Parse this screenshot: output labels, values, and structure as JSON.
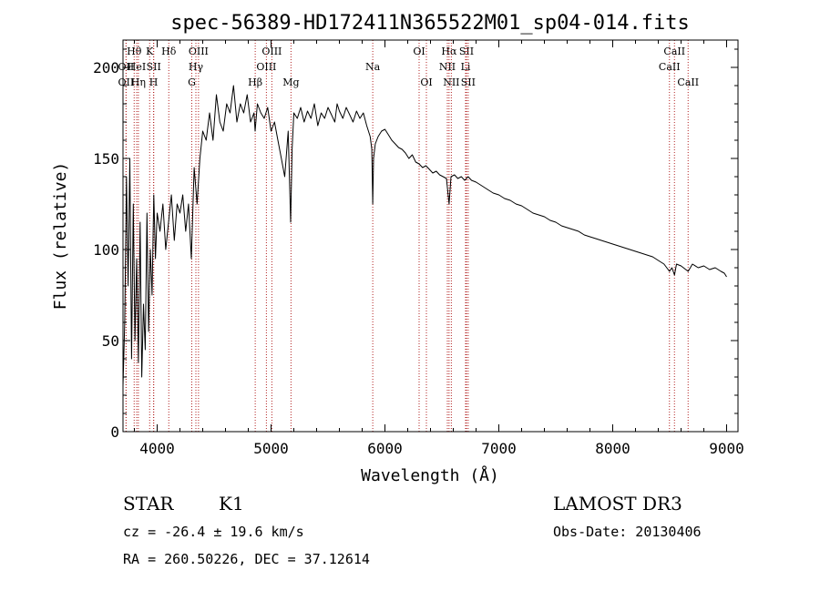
{
  "chart_data": {
    "type": "line",
    "title": "spec-56389-HD172411N365522M01_sp04-014.fits",
    "xlabel": "Wavelength (Å)",
    "ylabel": "Flux (relative)",
    "xlim": [
      3700,
      9100
    ],
    "ylim": [
      0,
      215
    ],
    "x_ticks": [
      4000,
      5000,
      6000,
      7000,
      8000,
      9000
    ],
    "y_ticks": [
      0,
      50,
      100,
      150,
      200
    ],
    "x_tick_labels": [
      "4000",
      "5000",
      "6000",
      "7000",
      "8000",
      "9000"
    ],
    "y_tick_labels": [
      "0",
      "50",
      "100",
      "150",
      "200"
    ],
    "grid": false,
    "series": [
      {
        "color": "#000000",
        "x": [
          3700,
          3715,
          3730,
          3745,
          3760,
          3775,
          3790,
          3805,
          3820,
          3835,
          3850,
          3865,
          3880,
          3895,
          3910,
          3925,
          3940,
          3955,
          3970,
          3985,
          4000,
          4025,
          4050,
          4075,
          4100,
          4125,
          4150,
          4175,
          4200,
          4225,
          4250,
          4275,
          4300,
          4325,
          4350,
          4375,
          4400,
          4430,
          4460,
          4490,
          4520,
          4550,
          4580,
          4610,
          4640,
          4670,
          4700,
          4730,
          4760,
          4790,
          4820,
          4850,
          4860,
          4880,
          4910,
          4940,
          4970,
          5000,
          5030,
          5060,
          5090,
          5120,
          5150,
          5172,
          5185,
          5200,
          5230,
          5260,
          5290,
          5320,
          5350,
          5380,
          5410,
          5440,
          5470,
          5500,
          5530,
          5560,
          5580,
          5600,
          5630,
          5660,
          5690,
          5720,
          5750,
          5780,
          5810,
          5840,
          5870,
          5885,
          5893,
          5900,
          5915,
          5940,
          5970,
          6000,
          6030,
          6060,
          6090,
          6120,
          6150,
          6180,
          6210,
          6240,
          6270,
          6300,
          6330,
          6360,
          6390,
          6420,
          6450,
          6480,
          6510,
          6540,
          6563,
          6580,
          6610,
          6640,
          6670,
          6700,
          6730,
          6760,
          6800,
          6850,
          6900,
          6950,
          7000,
          7050,
          7100,
          7150,
          7200,
          7250,
          7300,
          7350,
          7400,
          7450,
          7500,
          7550,
          7600,
          7650,
          7700,
          7750,
          7800,
          7850,
          7900,
          7950,
          8000,
          8050,
          8100,
          8150,
          8200,
          8250,
          8300,
          8350,
          8400,
          8450,
          8498,
          8520,
          8542,
          8560,
          8600,
          8662,
          8700,
          8750,
          8800,
          8850,
          8900,
          8950,
          8980,
          9000
        ],
        "y": [
          25,
          60,
          140,
          80,
          150,
          40,
          125,
          50,
          95,
          38,
          115,
          30,
          70,
          45,
          120,
          55,
          100,
          75,
          130,
          95,
          120,
          110,
          125,
          100,
          115,
          130,
          105,
          125,
          120,
          130,
          110,
          125,
          95,
          145,
          125,
          150,
          165,
          160,
          175,
          160,
          185,
          170,
          165,
          180,
          175,
          190,
          170,
          180,
          175,
          185,
          170,
          175,
          165,
          180,
          175,
          172,
          178,
          165,
          170,
          160,
          150,
          140,
          165,
          115,
          155,
          175,
          172,
          178,
          170,
          176,
          172,
          180,
          168,
          175,
          172,
          178,
          174,
          170,
          180,
          176,
          172,
          178,
          174,
          170,
          176,
          172,
          175,
          168,
          162,
          155,
          125,
          150,
          158,
          162,
          165,
          166,
          163,
          160,
          158,
          156,
          155,
          153,
          150,
          152,
          148,
          147,
          145,
          146,
          144,
          142,
          143,
          141,
          140,
          139,
          125,
          140,
          141,
          139,
          140,
          138,
          140,
          138,
          137,
          135,
          133,
          131,
          130,
          128,
          127,
          125,
          124,
          122,
          120,
          119,
          118,
          116,
          115,
          113,
          112,
          111,
          110,
          108,
          107,
          106,
          105,
          104,
          103,
          102,
          101,
          100,
          99,
          98,
          97,
          96,
          94,
          92,
          88,
          90,
          86,
          92,
          91,
          88,
          92,
          90,
          91,
          89,
          90,
          88,
          87,
          85
        ]
      }
    ],
    "spectral_lines": [
      {
        "label": "Hθ",
        "x": 3798,
        "row": 0
      },
      {
        "label": "OII",
        "x": 3727,
        "row": 1
      },
      {
        "label": "OII",
        "x": 3727,
        "row": 2
      },
      {
        "label": "HeI",
        "x": 3820,
        "row": 1
      },
      {
        "label": "Hη",
        "x": 3835,
        "row": 2
      },
      {
        "label": "K",
        "x": 3934,
        "row": 0
      },
      {
        "label": "SII",
        "x": 3970,
        "row": 1
      },
      {
        "label": "H",
        "x": 3968,
        "row": 2
      },
      {
        "label": "Hδ",
        "x": 4102,
        "row": 0
      },
      {
        "label": "OIII",
        "x": 4363,
        "row": 0
      },
      {
        "label": "Hγ",
        "x": 4340,
        "row": 1
      },
      {
        "label": "G",
        "x": 4304,
        "row": 2
      },
      {
        "label": "Hβ",
        "x": 4861,
        "row": 2
      },
      {
        "label": "OIII",
        "x": 5007,
        "row": 0
      },
      {
        "label": "OIII",
        "x": 4959,
        "row": 1
      },
      {
        "label": "Mg",
        "x": 5175,
        "row": 2
      },
      {
        "label": "Na",
        "x": 5893,
        "row": 1
      },
      {
        "label": "OI",
        "x": 6300,
        "row": 0
      },
      {
        "label": "OI",
        "x": 6364,
        "row": 2
      },
      {
        "label": "Hα",
        "x": 6563,
        "row": 0
      },
      {
        "label": "SII",
        "x": 6716,
        "row": 0
      },
      {
        "label": "NII",
        "x": 6548,
        "row": 1
      },
      {
        "label": "Li",
        "x": 6708,
        "row": 1
      },
      {
        "label": "NII",
        "x": 6583,
        "row": 2
      },
      {
        "label": "SII",
        "x": 6731,
        "row": 2
      },
      {
        "label": "CaII",
        "x": 8542,
        "row": 0
      },
      {
        "label": "CaII",
        "x": 8498,
        "row": 1
      },
      {
        "label": "CaII",
        "x": 8662,
        "row": 2
      }
    ]
  },
  "info": {
    "object_class": "STAR",
    "subclass": "K1",
    "survey": "LAMOST DR3",
    "redshift": "cz = -26.4 ± 19.6 km/s",
    "obs_date": "Obs-Date: 20130406",
    "coords": "RA = 260.50226, DEC =  37.12614"
  }
}
